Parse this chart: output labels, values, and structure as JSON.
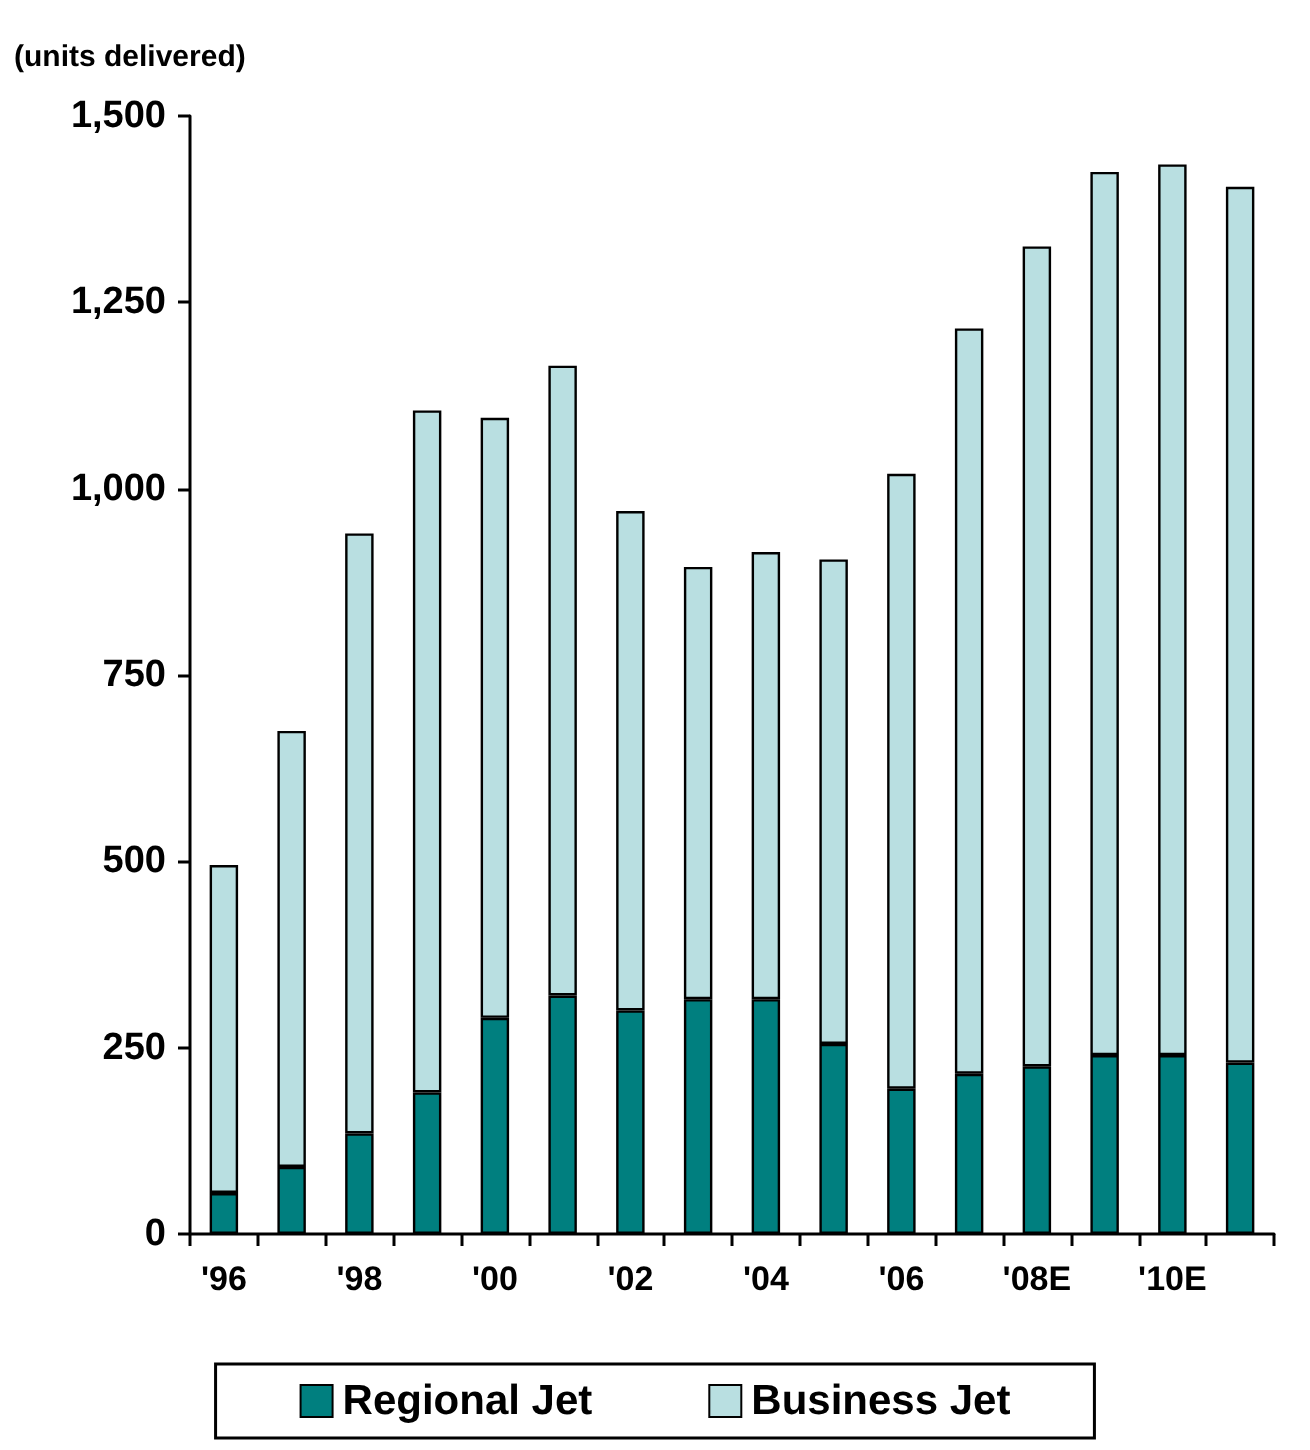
{
  "chart_data": {
    "type": "bar",
    "stacked": true,
    "ylabel": "(units delivered)",
    "categories": [
      "'96",
      null,
      "'98",
      null,
      "'00",
      null,
      "'02",
      null,
      "'04",
      null,
      "'06",
      null,
      "'08E",
      null,
      "'10E",
      null
    ],
    "series": [
      {
        "name": "Regional Jet",
        "color": "#007f7f",
        "values": [
          55,
          90,
          135,
          190,
          290,
          320,
          300,
          315,
          315,
          255,
          195,
          215,
          225,
          240,
          240,
          230
        ]
      },
      {
        "name": "Business Jet",
        "color": "#b9dfe1",
        "values": [
          440,
          585,
          805,
          915,
          805,
          845,
          670,
          580,
          600,
          650,
          825,
          1000,
          1100,
          1185,
          1195,
          1175
        ]
      }
    ],
    "ylim": [
      0,
      1500
    ],
    "yticks": [
      0,
      250,
      500,
      750,
      {
        "value": 1000,
        "label": "1,000"
      },
      {
        "value": 1250,
        "label": "1,250"
      },
      {
        "value": 1500,
        "label": "1,500"
      }
    ],
    "grid": false,
    "legend": "bottom"
  }
}
